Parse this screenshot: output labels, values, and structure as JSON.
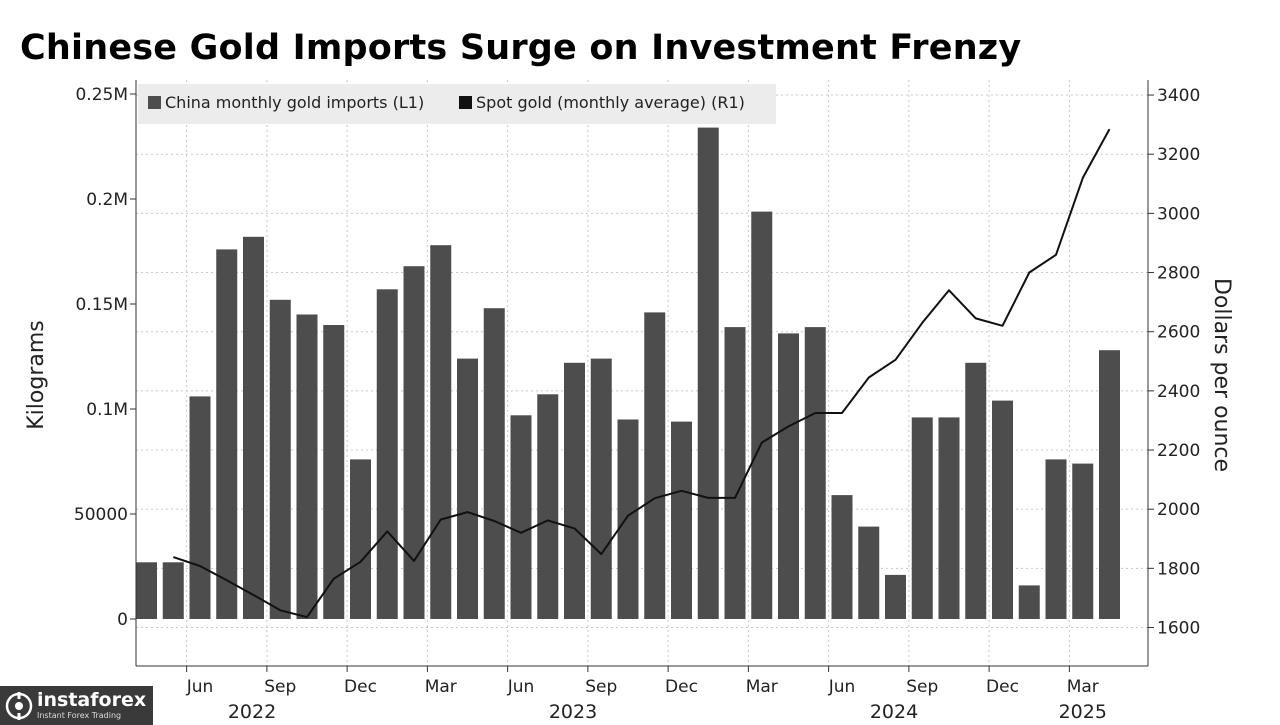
{
  "chart_data": {
    "type": "bar",
    "title": "Chinese Gold Imports Surge on Investment Frenzy",
    "ylabel": "Kilograms",
    "y2label": "Dollars per ounce",
    "ylim": [
      -20000,
      250000
    ],
    "y2lim": [
      1600,
      3400
    ],
    "y_ticks": [
      "0",
      "50000",
      "0.1M",
      "0.15M",
      "0.2M",
      "0.25M"
    ],
    "y_tick_values": [
      0,
      50000,
      100000,
      150000,
      200000,
      250000
    ],
    "y2_ticks": [
      "1600",
      "1800",
      "2000",
      "2200",
      "2400",
      "2600",
      "2800",
      "3000",
      "3200",
      "3400"
    ],
    "y2_tick_values": [
      1600,
      1800,
      2000,
      2200,
      2400,
      2600,
      2800,
      3000,
      3200,
      3400
    ],
    "x_month_ticks": [
      {
        "label": "Jun",
        "index": 2
      },
      {
        "label": "Sep",
        "index": 5
      },
      {
        "label": "Dec",
        "index": 8
      },
      {
        "label": "Mar",
        "index": 11
      },
      {
        "label": "Jun",
        "index": 14
      },
      {
        "label": "Sep",
        "index": 17
      },
      {
        "label": "Dec",
        "index": 20
      },
      {
        "label": "Mar",
        "index": 23
      },
      {
        "label": "Jun",
        "index": 26
      },
      {
        "label": "Sep",
        "index": 29
      },
      {
        "label": "Dec",
        "index": 32
      },
      {
        "label": "Mar",
        "index": 35
      }
    ],
    "x_year_ticks": [
      {
        "label": "2022",
        "index": 2
      },
      {
        "label": "2023",
        "index": 14
      },
      {
        "label": "2024",
        "index": 26
      },
      {
        "label": "2025",
        "index": 35
      }
    ],
    "categories": [
      "2022-04",
      "2022-05",
      "2022-06",
      "2022-07",
      "2022-08",
      "2022-09",
      "2022-10",
      "2022-11",
      "2022-12",
      "2023-01",
      "2023-02",
      "2023-03",
      "2023-04",
      "2023-05",
      "2023-06",
      "2023-07",
      "2023-08",
      "2023-09",
      "2023-10",
      "2023-11",
      "2023-12",
      "2024-01",
      "2024-02",
      "2024-03",
      "2024-04",
      "2024-05",
      "2024-06",
      "2024-07",
      "2024-08",
      "2024-09",
      "2024-10",
      "2024-11",
      "2024-12",
      "2025-01",
      "2025-02",
      "2025-03",
      "2025-04"
    ],
    "series": [
      {
        "name": "China monthly gold imports (L1)",
        "type": "bar",
        "axis": "left",
        "color": "#4d4d4d",
        "values": [
          27000,
          27000,
          106000,
          176000,
          182000,
          152000,
          145000,
          140000,
          76000,
          157000,
          168000,
          178000,
          124000,
          148000,
          97000,
          107000,
          122000,
          124000,
          95000,
          146000,
          94000,
          234000,
          139000,
          194000,
          136000,
          139000,
          59000,
          44000,
          21000,
          96000,
          96000,
          122000,
          104000,
          16000,
          76000,
          74000,
          128000
        ]
      },
      {
        "name": "Spot gold (monthly average) (R1)",
        "type": "line",
        "axis": "right",
        "color": "#111111",
        "values": [
          null,
          1838,
          1808,
          1760,
          1710,
          1658,
          1635,
          1765,
          1822,
          1925,
          1825,
          1965,
          1990,
          1960,
          1920,
          1962,
          1935,
          1848,
          1978,
          2037,
          2062,
          2038,
          2038,
          2225,
          2280,
          2325,
          2325,
          2445,
          2505,
          2630,
          2740,
          2645,
          2620,
          2800,
          2860,
          3120,
          3285
        ]
      }
    ],
    "legend_position": "top-left",
    "grid": true
  },
  "watermark": {
    "name": "instaforex",
    "tagline": "Instant Forex Trading"
  },
  "colors": {
    "bar": "#4d4d4d",
    "line": "#111111",
    "legend_bg": "#ececec",
    "grid": "#c8c8c8"
  }
}
